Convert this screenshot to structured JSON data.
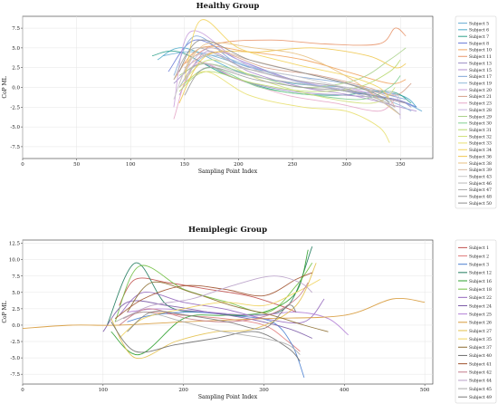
{
  "chart_data": [
    {
      "type": "line",
      "title": "Healthy Group",
      "xlabel": "Sampling Point Index",
      "ylabel": "CoP ML",
      "xlim": [
        0,
        380
      ],
      "ylim": [
        -9,
        9
      ],
      "xticks": [
        "0",
        "50",
        "100",
        "150",
        "200",
        "250",
        "300",
        "350"
      ],
      "yticks": [
        "-7.5",
        "-5.0",
        "-2.5",
        "0.0",
        "2.5",
        "5.0",
        "7.5"
      ],
      "grid": true,
      "legend_position": "outside-right",
      "series": [
        {
          "name": "Subject 5",
          "color": "#6aaed6",
          "x": [
            130,
            160,
            200,
            250,
            300,
            345,
            370
          ],
          "y": [
            4.0,
            4.5,
            3.0,
            1.0,
            -0.5,
            -1.5,
            -3.0
          ]
        },
        {
          "name": "Subject 6",
          "color": "#4aa8c8",
          "x": [
            125,
            150,
            200,
            250,
            300,
            350,
            365
          ],
          "y": [
            3.5,
            5.0,
            2.0,
            0.5,
            0.0,
            -1.0,
            -2.5
          ]
        },
        {
          "name": "Subject 7",
          "color": "#2ca089",
          "x": [
            120,
            145,
            190,
            240,
            290,
            340,
            360
          ],
          "y": [
            4.0,
            4.5,
            1.5,
            -0.5,
            -1.0,
            -0.5,
            -2.0
          ]
        },
        {
          "name": "Subject 8",
          "color": "#6b7bd6",
          "x": [
            135,
            160,
            200,
            250,
            300,
            345,
            365
          ],
          "y": [
            2.0,
            6.0,
            3.5,
            1.0,
            -0.5,
            -1.5,
            -2.5
          ]
        },
        {
          "name": "Subject 10",
          "color": "#f0a35e",
          "x": [
            140,
            165,
            210,
            260,
            300,
            340,
            355
          ],
          "y": [
            1.0,
            5.0,
            4.5,
            3.5,
            2.0,
            0.5,
            1.0
          ]
        },
        {
          "name": "Subject 11",
          "color": "#e8956a",
          "x": [
            150,
            180,
            230,
            280,
            330,
            345,
            355
          ],
          "y": [
            3.0,
            5.5,
            6.0,
            5.5,
            5.5,
            7.5,
            6.5
          ]
        },
        {
          "name": "Subject 13",
          "color": "#9b8cc4",
          "x": [
            140,
            165,
            200,
            250,
            300,
            345,
            360
          ],
          "y": [
            0.5,
            3.0,
            1.0,
            -0.5,
            -1.0,
            -1.5,
            -2.5
          ]
        },
        {
          "name": "Subject 15",
          "color": "#b08fcf",
          "x": [
            145,
            170,
            210,
            260,
            305,
            350,
            365
          ],
          "y": [
            -1.0,
            4.5,
            2.0,
            0.0,
            -1.0,
            -2.5,
            -3.0
          ]
        },
        {
          "name": "Subject 17",
          "color": "#7fa6d8",
          "x": [
            140,
            160,
            200,
            250,
            300,
            340,
            355
          ],
          "y": [
            1.5,
            6.5,
            3.0,
            1.5,
            0.5,
            -1.0,
            -1.5
          ]
        },
        {
          "name": "Subject 19",
          "color": "#8fb8d8",
          "x": [
            145,
            170,
            215,
            260,
            310,
            345,
            360
          ],
          "y": [
            0.0,
            4.0,
            2.5,
            0.5,
            -0.5,
            -2.0,
            -3.0
          ]
        },
        {
          "name": "Subject 20",
          "color": "#c9a0dc",
          "x": [
            140,
            155,
            200,
            250,
            300,
            340,
            355
          ],
          "y": [
            -2.5,
            7.0,
            3.5,
            1.0,
            0.0,
            -1.5,
            -2.0
          ]
        },
        {
          "name": "Subject 21",
          "color": "#d59f8a",
          "x": [
            150,
            180,
            225,
            275,
            320,
            345,
            360
          ],
          "y": [
            2.5,
            4.5,
            2.5,
            1.5,
            0.0,
            -1.0,
            0.5
          ]
        },
        {
          "name": "Subject 23",
          "color": "#e6a7c8",
          "x": [
            140,
            160,
            200,
            245,
            290,
            330,
            345
          ],
          "y": [
            -4.0,
            3.0,
            1.0,
            -1.0,
            -2.0,
            -3.0,
            -1.5
          ]
        },
        {
          "name": "Subject 28",
          "color": "#c6b4e0",
          "x": [
            150,
            175,
            220,
            265,
            310,
            345,
            350
          ],
          "y": [
            2.0,
            5.0,
            2.0,
            0.5,
            -0.5,
            -1.0,
            -4.0
          ]
        },
        {
          "name": "Subject 29",
          "color": "#a8d18a",
          "x": [
            145,
            170,
            215,
            260,
            310,
            340,
            355
          ],
          "y": [
            1.5,
            3.0,
            1.5,
            0.0,
            1.0,
            3.5,
            5.0
          ]
        },
        {
          "name": "Subject 30",
          "color": "#7fcf8f",
          "x": [
            150,
            175,
            220,
            270,
            315,
            340,
            350
          ],
          "y": [
            0.5,
            2.5,
            0.0,
            -1.0,
            -1.5,
            0.0,
            1.5
          ]
        },
        {
          "name": "Subject 31",
          "color": "#b6d86a",
          "x": [
            145,
            170,
            215,
            265,
            310,
            340,
            350
          ],
          "y": [
            -0.5,
            2.0,
            0.5,
            -0.5,
            0.0,
            2.0,
            3.5
          ]
        },
        {
          "name": "Subject 32",
          "color": "#cfe07a",
          "x": [
            150,
            175,
            220,
            270,
            315,
            335,
            345
          ],
          "y": [
            1.0,
            3.5,
            1.0,
            -1.0,
            -2.0,
            -1.5,
            0.0
          ]
        },
        {
          "name": "Subject 33",
          "color": "#e8e070",
          "x": [
            145,
            170,
            210,
            260,
            300,
            330,
            340
          ],
          "y": [
            0.0,
            2.0,
            -1.0,
            -2.5,
            -3.0,
            -5.0,
            -7.0
          ]
        },
        {
          "name": "Subject 34",
          "color": "#f2d35a",
          "x": [
            150,
            165,
            200,
            250,
            300,
            330,
            340
          ],
          "y": [
            1.0,
            8.5,
            5.0,
            3.0,
            1.5,
            0.0,
            -1.5
          ]
        },
        {
          "name": "Subject 36",
          "color": "#f0c850",
          "x": [
            145,
            170,
            220,
            270,
            320,
            345,
            355
          ],
          "y": [
            -2.0,
            4.0,
            4.5,
            5.0,
            4.0,
            2.5,
            3.0
          ]
        },
        {
          "name": "Subject 38",
          "color": "#e8c080",
          "x": [
            150,
            170,
            215,
            260,
            305,
            335,
            350
          ],
          "y": [
            2.0,
            5.5,
            5.0,
            4.0,
            1.0,
            -2.0,
            -3.5
          ]
        },
        {
          "name": "Subject 39",
          "color": "#d8b8a0",
          "x": [
            145,
            165,
            210,
            255,
            300,
            335,
            345
          ],
          "y": [
            0.5,
            5.0,
            3.5,
            2.0,
            0.5,
            -1.0,
            -2.5
          ]
        },
        {
          "name": "Subject 43",
          "color": "#c8c8c8",
          "x": [
            140,
            160,
            200,
            250,
            300,
            340,
            350
          ],
          "y": [
            -1.5,
            4.0,
            2.5,
            1.5,
            0.0,
            -0.5,
            -1.5
          ]
        },
        {
          "name": "Subject 46",
          "color": "#b8b8b8",
          "x": [
            145,
            165,
            210,
            255,
            300,
            335,
            350
          ],
          "y": [
            0.0,
            3.0,
            1.5,
            0.5,
            -0.5,
            -2.0,
            -3.5
          ]
        },
        {
          "name": "Subject 47",
          "color": "#a8a8a8",
          "x": [
            140,
            160,
            205,
            250,
            295,
            330,
            345
          ],
          "y": [
            1.0,
            5.0,
            2.5,
            1.0,
            0.0,
            -1.5,
            -2.5
          ]
        },
        {
          "name": "Subject 48",
          "color": "#9a9a9a",
          "x": [
            150,
            170,
            215,
            260,
            305,
            340,
            355
          ],
          "y": [
            -1.0,
            2.5,
            1.0,
            0.0,
            -0.5,
            -1.5,
            -2.0
          ]
        },
        {
          "name": "Subject 50",
          "color": "#8c8c8c",
          "x": [
            145,
            165,
            210,
            255,
            300,
            330,
            340
          ],
          "y": [
            2.0,
            6.0,
            3.5,
            2.0,
            0.5,
            -1.0,
            -2.0
          ]
        }
      ]
    },
    {
      "type": "line",
      "title": "Hemiplegic Group",
      "xlabel": "Sampling Point Index",
      "ylabel": "CoP ML",
      "xlim": [
        0,
        510
      ],
      "ylim": [
        -9,
        13
      ],
      "xticks": [
        "0",
        "100",
        "200",
        "300",
        "400",
        "500"
      ],
      "yticks": [
        "-7.5",
        "-5.0",
        "-2.5",
        "0.0",
        "2.5",
        "5.0",
        "7.5",
        "10.0",
        "12.5"
      ],
      "grid": true,
      "legend_position": "outside-right",
      "series": [
        {
          "name": "Subject 1",
          "color": "#c0504d",
          "x": [
            120,
            140,
            180,
            230,
            280,
            320,
            340
          ],
          "y": [
            3.0,
            7.0,
            6.5,
            5.5,
            4.5,
            3.0,
            2.0
          ]
        },
        {
          "name": "Subject 2",
          "color": "#e07b7b",
          "x": [
            125,
            150,
            200,
            250,
            300,
            330,
            345
          ],
          "y": [
            1.0,
            2.0,
            1.5,
            1.0,
            0.0,
            -2.5,
            -4.0
          ]
        },
        {
          "name": "Subject 3",
          "color": "#4a7fd0",
          "x": [
            130,
            160,
            210,
            260,
            310,
            335,
            350
          ],
          "y": [
            0.5,
            1.5,
            2.0,
            1.5,
            0.5,
            -3.0,
            -8.0
          ]
        },
        {
          "name": "Subject 12",
          "color": "#1f7a5c",
          "x": [
            105,
            140,
            180,
            230,
            280,
            330,
            360
          ],
          "y": [
            0.0,
            9.5,
            3.0,
            2.0,
            1.5,
            3.0,
            12.0
          ]
        },
        {
          "name": "Subject 16",
          "color": "#2ca02c",
          "x": [
            110,
            145,
            200,
            250,
            300,
            340,
            355
          ],
          "y": [
            -1.0,
            -4.5,
            1.0,
            1.5,
            2.0,
            5.0,
            11.5
          ]
        },
        {
          "name": "Subject 18",
          "color": "#6fbf3f",
          "x": [
            115,
            145,
            200,
            255,
            305,
            340,
            360
          ],
          "y": [
            0.5,
            9.0,
            5.5,
            3.5,
            2.0,
            6.0,
            9.5
          ]
        },
        {
          "name": "Subject 22",
          "color": "#9467bd",
          "x": [
            120,
            150,
            200,
            250,
            300,
            350,
            375
          ],
          "y": [
            1.5,
            5.0,
            3.5,
            2.5,
            1.0,
            0.5,
            4.0
          ]
        },
        {
          "name": "Subject 24",
          "color": "#7b5aa6",
          "x": [
            100,
            130,
            180,
            230,
            280,
            330,
            360
          ],
          "y": [
            -1.0,
            3.5,
            3.0,
            2.0,
            1.0,
            -0.5,
            -2.0
          ]
        },
        {
          "name": "Subject 25",
          "color": "#b27fd6",
          "x": [
            130,
            170,
            230,
            290,
            340,
            380,
            405
          ],
          "y": [
            2.0,
            2.5,
            2.0,
            1.5,
            2.0,
            1.0,
            -1.5
          ]
        },
        {
          "name": "Subject 26",
          "color": "#d79a3a",
          "x": [
            0,
            60,
            120,
            200,
            300,
            400,
            460,
            500
          ],
          "y": [
            -0.5,
            0.0,
            0.0,
            0.5,
            1.0,
            1.5,
            4.0,
            3.5
          ]
        },
        {
          "name": "Subject 27",
          "color": "#e3c04a",
          "x": [
            110,
            140,
            190,
            240,
            290,
            340,
            365
          ],
          "y": [
            1.0,
            -5.0,
            -2.5,
            -1.0,
            -0.5,
            3.0,
            9.5
          ]
        },
        {
          "name": "Subject 35",
          "color": "#f0d25a",
          "x": [
            120,
            150,
            200,
            250,
            300,
            340,
            370
          ],
          "y": [
            -2.0,
            1.0,
            2.5,
            3.5,
            3.0,
            5.0,
            7.0
          ]
        },
        {
          "name": "Subject 37",
          "color": "#8b6b2e",
          "x": [
            130,
            160,
            210,
            260,
            310,
            350,
            380
          ],
          "y": [
            2.0,
            6.5,
            5.0,
            3.0,
            1.5,
            0.0,
            -1.0
          ]
        },
        {
          "name": "Subject 40",
          "color": "#6d6d6d",
          "x": [
            110,
            140,
            190,
            240,
            290,
            330,
            345
          ],
          "y": [
            0.5,
            -4.0,
            -3.0,
            -2.0,
            -1.0,
            -3.5,
            -5.5
          ]
        },
        {
          "name": "Subject 41",
          "color": "#a0522d",
          "x": [
            115,
            150,
            200,
            250,
            300,
            340,
            360
          ],
          "y": [
            1.0,
            4.0,
            6.0,
            5.5,
            4.5,
            7.0,
            8.0
          ]
        },
        {
          "name": "Subject 42",
          "color": "#c47a8a",
          "x": [
            120,
            155,
            205,
            255,
            305,
            340,
            355
          ],
          "y": [
            0.0,
            2.5,
            1.0,
            0.5,
            1.5,
            4.0,
            6.5
          ]
        },
        {
          "name": "Subject 44",
          "color": "#b8a0c8",
          "x": [
            125,
            160,
            210,
            260,
            310,
            345,
            360
          ],
          "y": [
            1.0,
            3.0,
            4.0,
            6.0,
            7.5,
            6.5,
            5.0
          ]
        },
        {
          "name": "Subject 45",
          "color": "#a8a8a8",
          "x": [
            115,
            150,
            200,
            250,
            300,
            330,
            345
          ],
          "y": [
            0.5,
            2.0,
            0.5,
            -1.0,
            -2.0,
            -3.0,
            -4.5
          ]
        },
        {
          "name": "Subject 49",
          "color": "#7a7a7a",
          "x": [
            130,
            160,
            205,
            255,
            300,
            330,
            340
          ],
          "y": [
            -1.0,
            2.0,
            1.5,
            0.5,
            -0.5,
            3.0,
            2.0
          ]
        }
      ]
    }
  ]
}
